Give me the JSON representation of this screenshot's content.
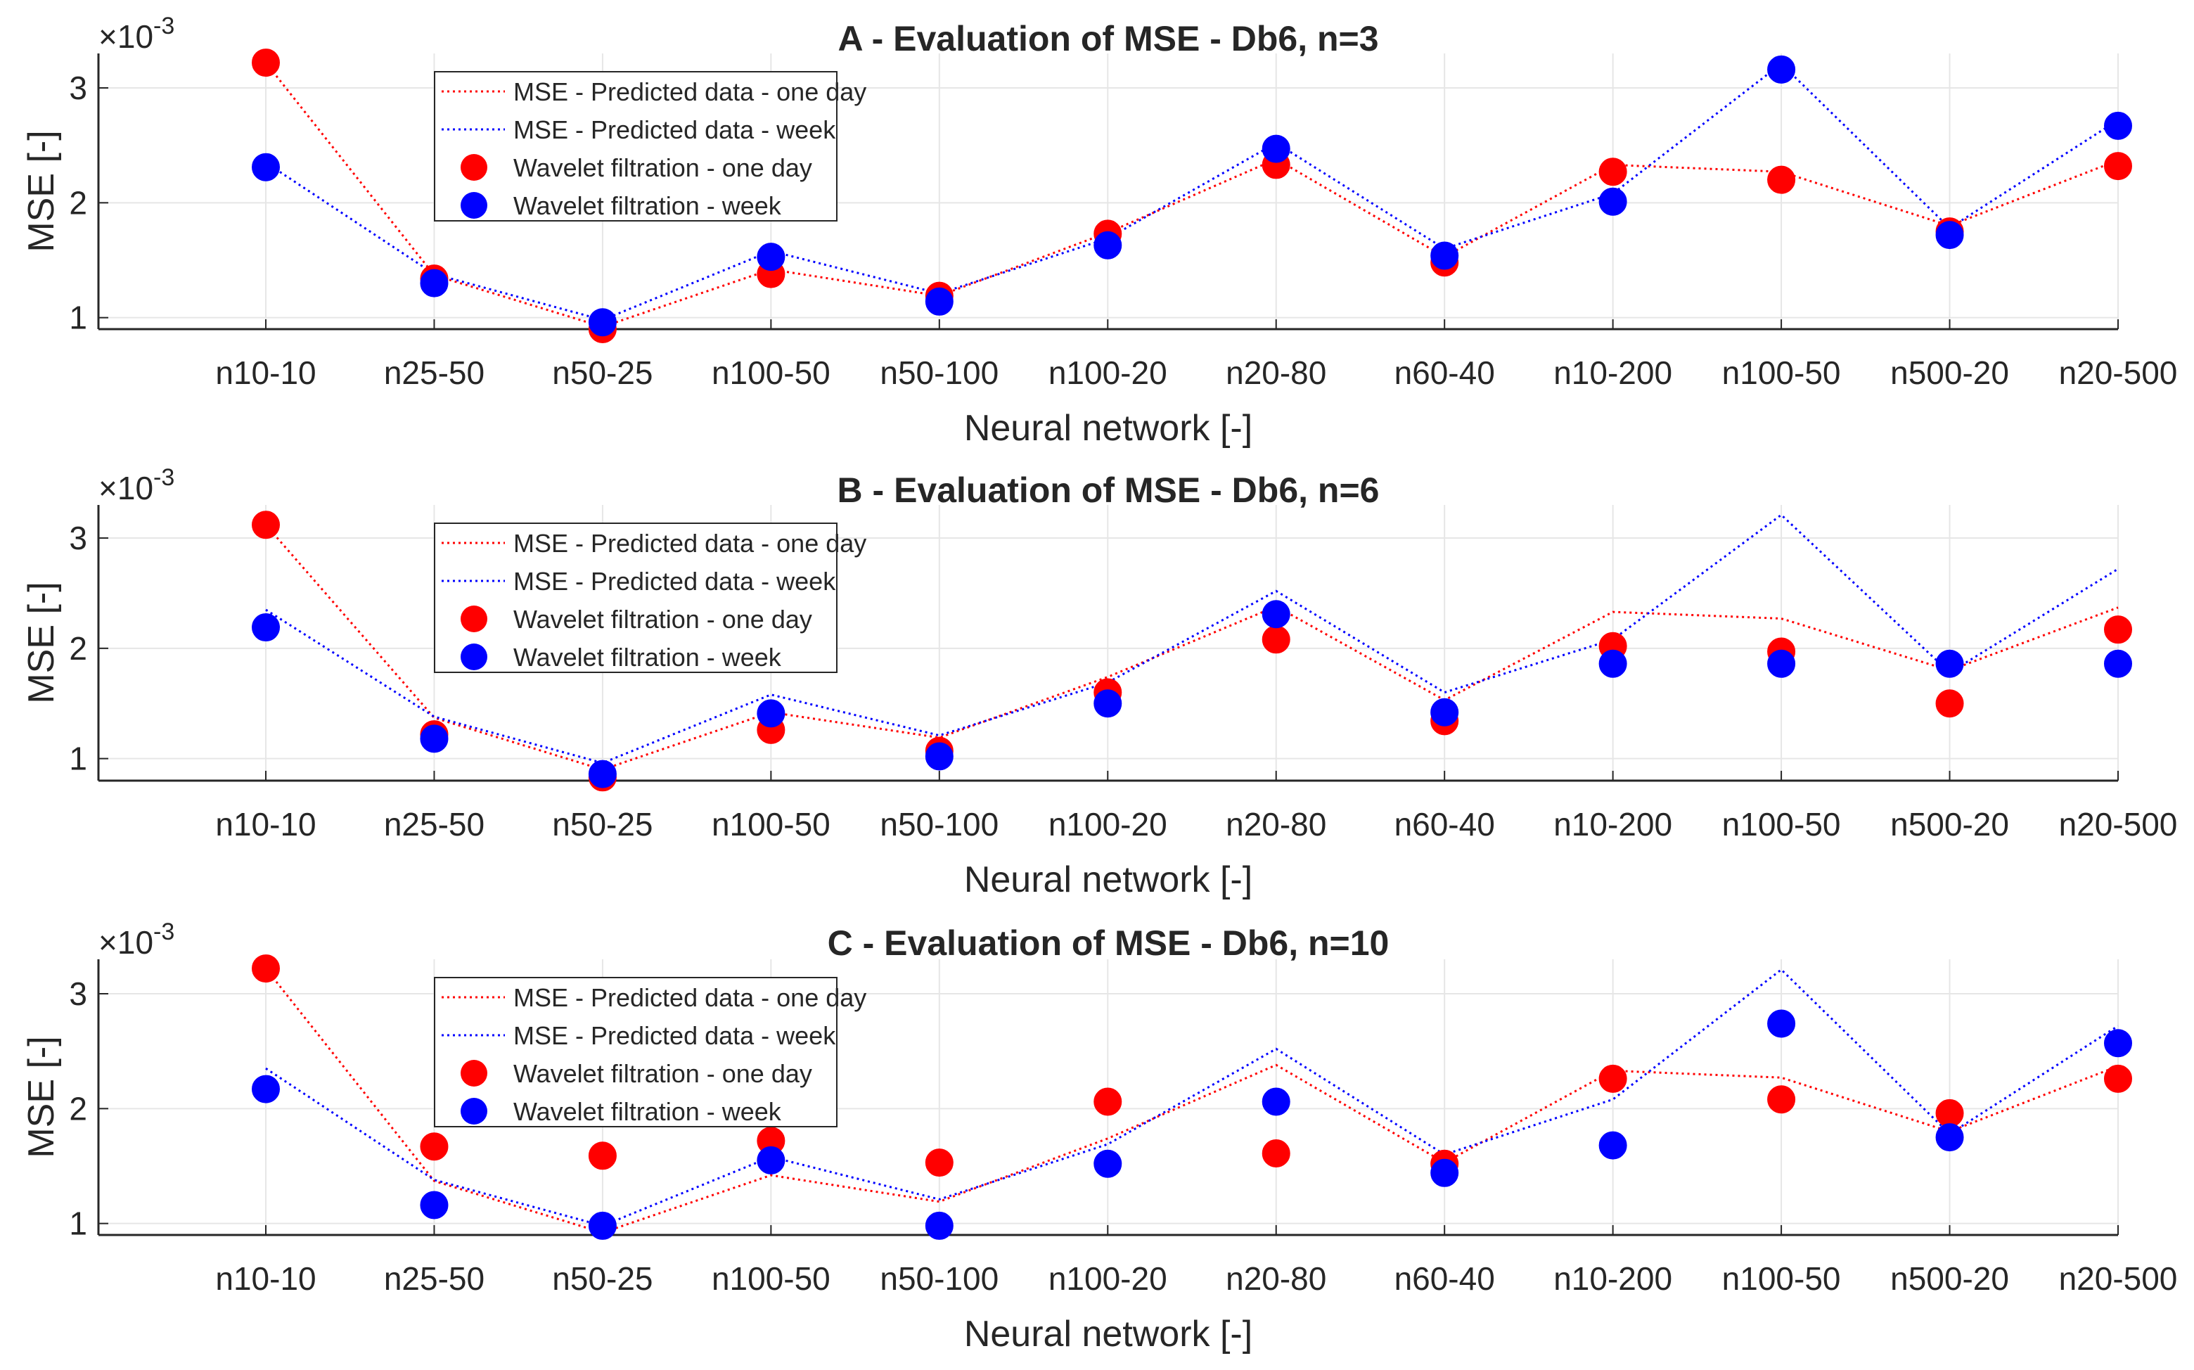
{
  "chart_data": [
    {
      "type": "scatter+line",
      "title": "A - Evaluation of MSE - Db6, n=3",
      "xlabel": "Neural network [-]",
      "ylabel": "MSE [-]",
      "y_exponent": "-3",
      "ylim": [
        0.9,
        3.3
      ],
      "yticks": [
        "1",
        "2",
        "3"
      ],
      "categories": [
        "n10-10",
        "n25-50",
        "n50-25",
        "n100-50",
        "n50-100",
        "n100-20",
        "n20-80",
        "n60-40",
        "n10-200",
        "n100-50",
        "n500-20",
        "n20-500"
      ],
      "legend": [
        "MSE - Predicted data - one day",
        "MSE - Predicted data - week",
        "Wavelet filtration - one day",
        "Wavelet filtration - week"
      ],
      "series": [
        {
          "name": "MSE - Predicted data - one day",
          "style": "dotted-line",
          "color": "#ff0000",
          "values": [
            3.22,
            1.37,
            0.92,
            1.42,
            1.19,
            1.74,
            2.38,
            1.53,
            2.33,
            2.27,
            1.8,
            2.37
          ]
        },
        {
          "name": "MSE - Predicted data - week",
          "style": "dotted-line",
          "color": "#0000ff",
          "values": [
            2.35,
            1.38,
            0.98,
            1.58,
            1.21,
            1.69,
            2.52,
            1.6,
            2.08,
            3.21,
            1.78,
            2.72
          ]
        },
        {
          "name": "Wavelet filtration - one day",
          "style": "marker",
          "color": "#ff0000",
          "values": [
            3.22,
            1.34,
            0.9,
            1.38,
            1.19,
            1.73,
            2.33,
            1.48,
            2.27,
            2.2,
            1.75,
            2.32
          ]
        },
        {
          "name": "Wavelet filtration - week",
          "style": "marker",
          "color": "#0000ff",
          "values": [
            2.31,
            1.3,
            0.96,
            1.53,
            1.14,
            1.63,
            2.47,
            1.54,
            2.01,
            3.16,
            1.72,
            2.67
          ]
        }
      ]
    },
    {
      "type": "scatter+line",
      "title": "B - Evaluation of MSE - Db6, n=6",
      "xlabel": "Neural network [-]",
      "ylabel": "MSE [-]",
      "y_exponent": "-3",
      "ylim": [
        0.8,
        3.3
      ],
      "yticks": [
        "1",
        "2",
        "3"
      ],
      "categories": [
        "n10-10",
        "n25-50",
        "n50-25",
        "n100-50",
        "n50-100",
        "n100-20",
        "n20-80",
        "n60-40",
        "n10-200",
        "n100-50",
        "n500-20",
        "n20-500"
      ],
      "legend": [
        "MSE - Predicted data - one day",
        "MSE - Predicted data - week",
        "Wavelet filtration - one day",
        "Wavelet filtration - week"
      ],
      "series": [
        {
          "name": "MSE - Predicted data - one day",
          "style": "dotted-line",
          "color": "#ff0000",
          "values": [
            3.12,
            1.37,
            0.9,
            1.42,
            1.19,
            1.74,
            2.38,
            1.53,
            2.33,
            2.27,
            1.8,
            2.37
          ]
        },
        {
          "name": "MSE - Predicted data - week",
          "style": "dotted-line",
          "color": "#0000ff",
          "values": [
            2.35,
            1.38,
            0.96,
            1.58,
            1.21,
            1.69,
            2.52,
            1.6,
            2.08,
            3.21,
            1.78,
            2.72
          ]
        },
        {
          "name": "Wavelet filtration - one day",
          "style": "marker",
          "color": "#ff0000",
          "values": [
            3.12,
            1.22,
            0.83,
            1.26,
            1.07,
            1.6,
            2.08,
            1.34,
            2.02,
            1.97,
            1.5,
            2.17
          ]
        },
        {
          "name": "Wavelet filtration - week",
          "style": "marker",
          "color": "#0000ff",
          "values": [
            2.19,
            1.18,
            0.86,
            1.41,
            1.02,
            1.5,
            2.31,
            1.42,
            1.86,
            1.86,
            1.86,
            1.86
          ]
        }
      ]
    },
    {
      "type": "scatter+line",
      "title": "C - Evaluation of MSE - Db6, n=10",
      "xlabel": "Neural network [-]",
      "ylabel": "MSE [-]",
      "y_exponent": "-3",
      "ylim": [
        0.9,
        3.3
      ],
      "yticks": [
        "1",
        "2",
        "3"
      ],
      "categories": [
        "n10-10",
        "n25-50",
        "n50-25",
        "n100-50",
        "n50-100",
        "n100-20",
        "n20-80",
        "n60-40",
        "n10-200",
        "n100-50",
        "n500-20",
        "n20-500"
      ],
      "legend": [
        "MSE - Predicted data - one day",
        "MSE - Predicted data - week",
        "Wavelet filtration - one day",
        "Wavelet filtration - week"
      ],
      "series": [
        {
          "name": "MSE - Predicted data - one day",
          "style": "dotted-line",
          "color": "#ff0000",
          "values": [
            3.22,
            1.37,
            0.92,
            1.42,
            1.19,
            1.74,
            2.38,
            1.53,
            2.33,
            2.27,
            1.8,
            2.37
          ]
        },
        {
          "name": "MSE - Predicted data - week",
          "style": "dotted-line",
          "color": "#0000ff",
          "values": [
            2.35,
            1.38,
            0.98,
            1.58,
            1.21,
            1.69,
            2.52,
            1.6,
            2.08,
            3.21,
            1.78,
            2.72
          ]
        },
        {
          "name": "Wavelet filtration - one day",
          "style": "marker",
          "color": "#ff0000",
          "values": [
            3.22,
            1.67,
            1.59,
            1.72,
            1.53,
            2.06,
            1.61,
            1.52,
            2.26,
            2.08,
            1.96,
            2.26
          ]
        },
        {
          "name": "Wavelet filtration - week",
          "style": "marker",
          "color": "#0000ff",
          "values": [
            2.17,
            1.16,
            0.98,
            1.55,
            0.98,
            1.52,
            2.06,
            1.44,
            1.68,
            2.74,
            1.75,
            2.57
          ]
        }
      ]
    }
  ]
}
